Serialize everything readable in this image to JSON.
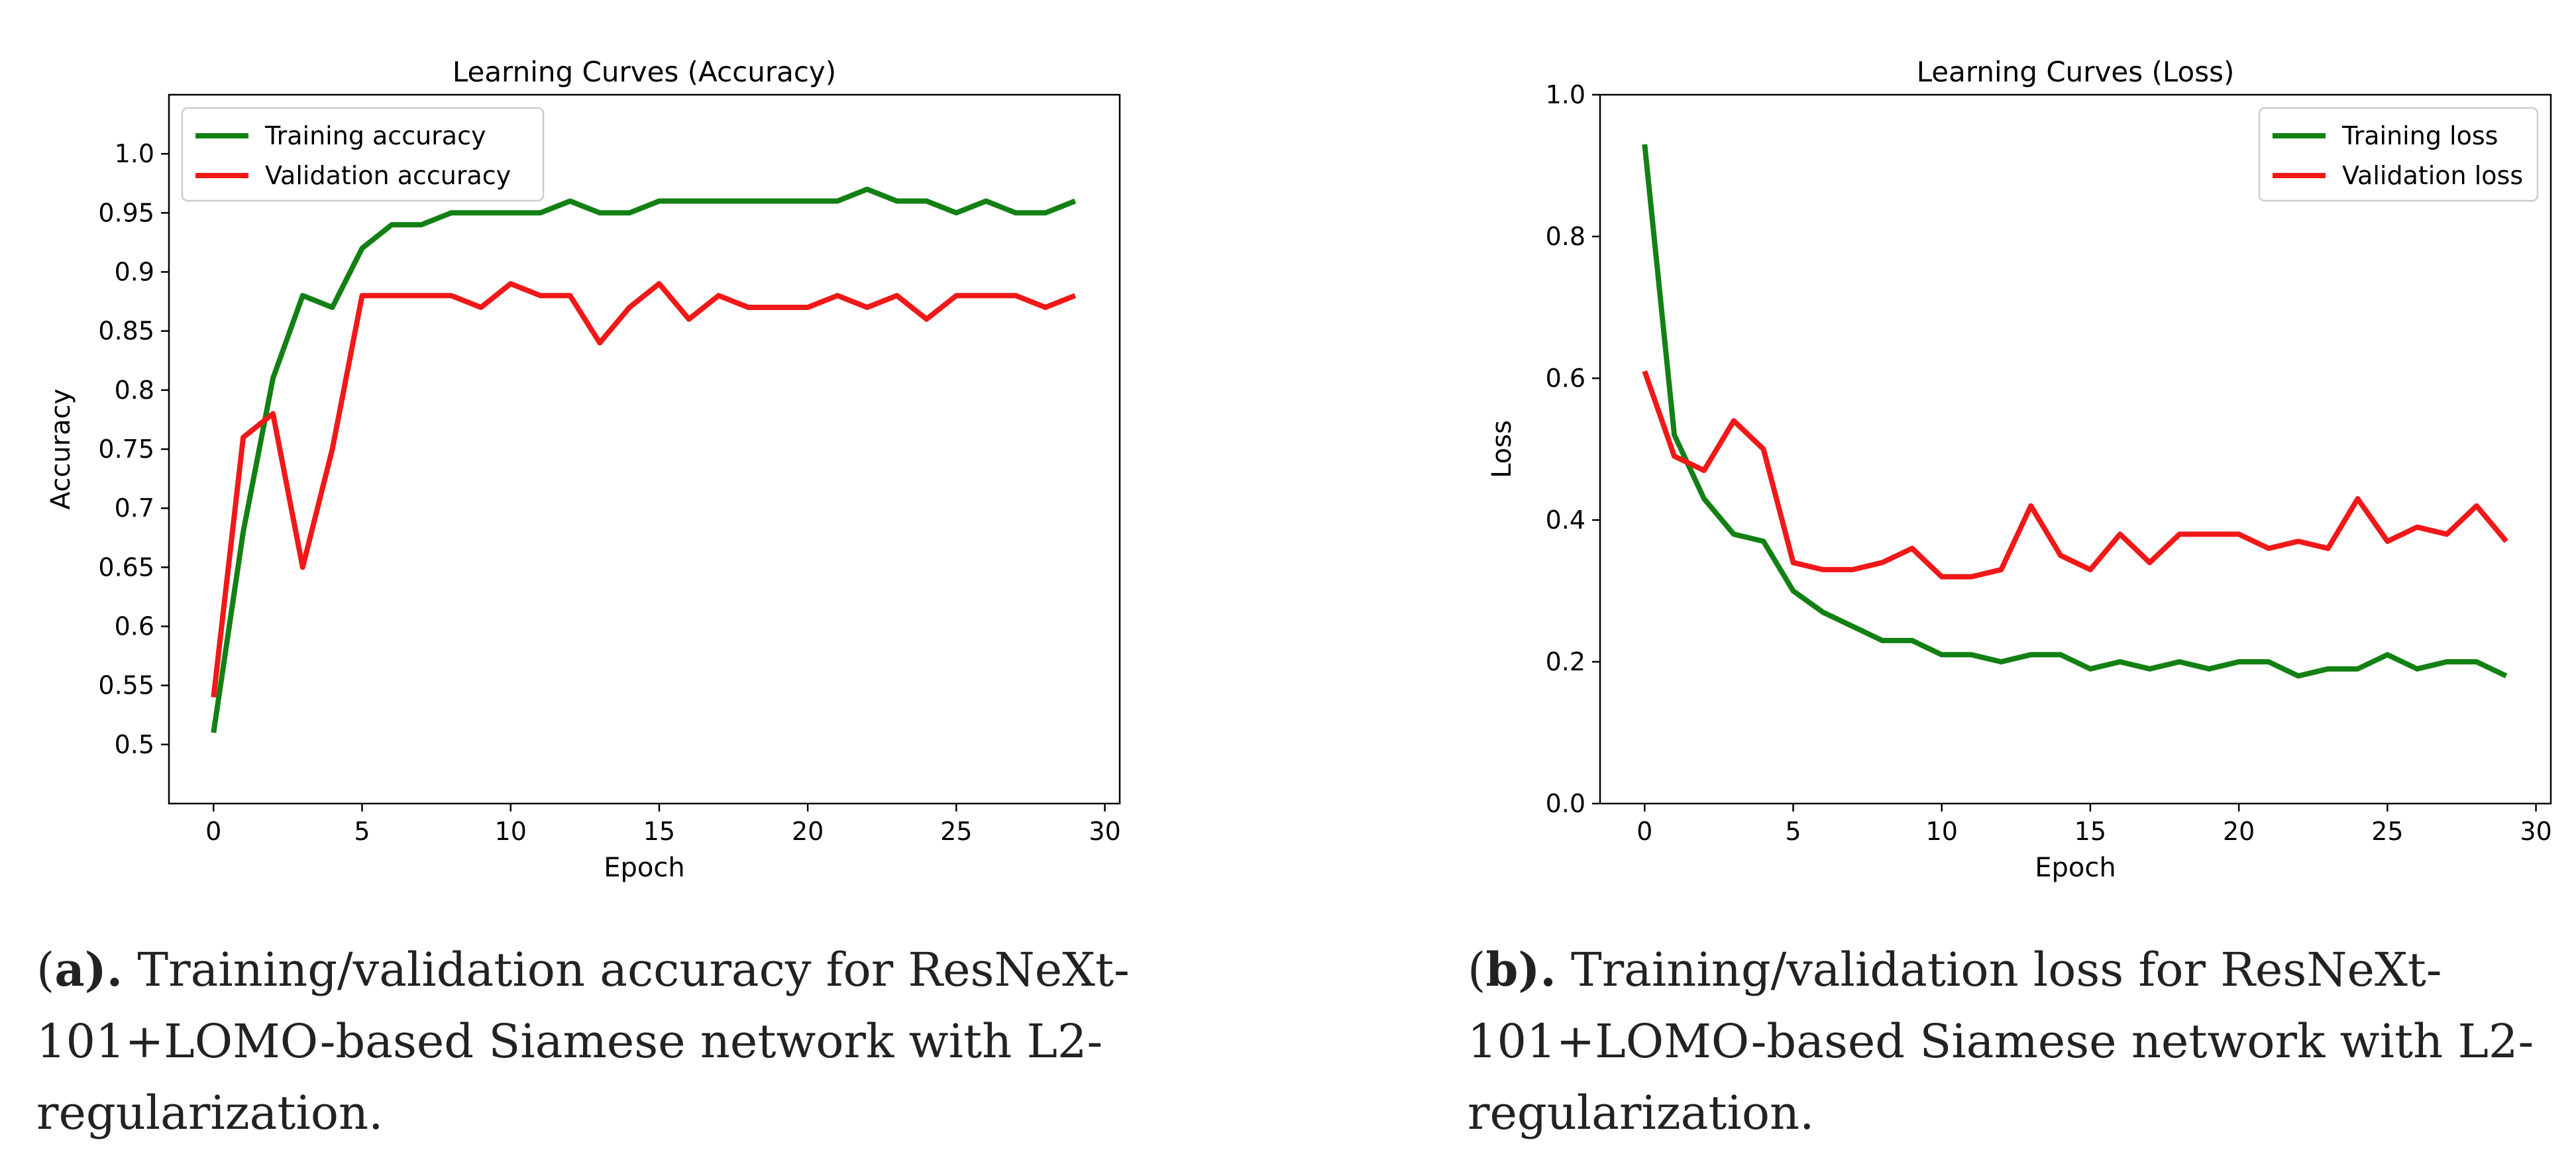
{
  "chart_data": [
    {
      "id": "a",
      "type": "line",
      "title": "Learning Curves (Accuracy)",
      "xlabel": "Epoch",
      "ylabel": "Accuracy",
      "xlim": [
        -1.5,
        30.5
      ],
      "ylim": [
        0.45,
        1.05
      ],
      "xticks": [
        0,
        5,
        10,
        15,
        20,
        25,
        30
      ],
      "yticks": [
        0.5,
        0.55,
        0.6,
        0.65,
        0.7,
        0.75,
        0.8,
        0.85,
        0.9,
        0.95,
        1.0
      ],
      "ytick_labels": [
        "0.5",
        "0.55",
        "0.6",
        "0.65",
        "0.7",
        "0.75",
        "0.8",
        "0.85",
        "0.9",
        "0.95",
        "1.0"
      ],
      "legend_position": "top-left",
      "x": [
        0,
        1,
        2,
        3,
        4,
        5,
        6,
        7,
        8,
        9,
        10,
        11,
        12,
        13,
        14,
        15,
        16,
        17,
        18,
        19,
        20,
        21,
        22,
        23,
        24,
        25,
        26,
        27,
        28,
        29
      ],
      "series": [
        {
          "name": "Training accuracy",
          "color": "#138013",
          "values": [
            0.51,
            0.68,
            0.81,
            0.88,
            0.87,
            0.92,
            0.94,
            0.94,
            0.95,
            0.95,
            0.95,
            0.95,
            0.96,
            0.95,
            0.95,
            0.96,
            0.96,
            0.96,
            0.96,
            0.96,
            0.96,
            0.96,
            0.97,
            0.96,
            0.96,
            0.95,
            0.96,
            0.95,
            0.95,
            0.96
          ]
        },
        {
          "name": "Validation accuracy",
          "color": "#f01818",
          "values": [
            0.54,
            0.76,
            0.78,
            0.65,
            0.75,
            0.88,
            0.88,
            0.88,
            0.88,
            0.87,
            0.89,
            0.88,
            0.88,
            0.84,
            0.87,
            0.89,
            0.86,
            0.88,
            0.87,
            0.87,
            0.87,
            0.88,
            0.87,
            0.88,
            0.86,
            0.88,
            0.88,
            0.88,
            0.87,
            0.88
          ]
        }
      ]
    },
    {
      "id": "b",
      "type": "line",
      "title": "Learning Curves (Loss)",
      "xlabel": "Epoch",
      "ylabel": "Loss",
      "xlim": [
        -1.5,
        30.5
      ],
      "ylim": [
        0.0,
        1.0
      ],
      "xticks": [
        0,
        5,
        10,
        15,
        20,
        25,
        30
      ],
      "yticks": [
        0.0,
        0.2,
        0.4,
        0.6,
        0.8,
        1.0
      ],
      "ytick_labels": [
        "0.0",
        "0.2",
        "0.4",
        "0.6",
        "0.8",
        "1.0"
      ],
      "legend_position": "top-right",
      "x": [
        0,
        1,
        2,
        3,
        4,
        5,
        6,
        7,
        8,
        9,
        10,
        11,
        12,
        13,
        14,
        15,
        16,
        17,
        18,
        19,
        20,
        21,
        22,
        23,
        24,
        25,
        26,
        27,
        28,
        29
      ],
      "series": [
        {
          "name": "Training loss",
          "color": "#138013",
          "values": [
            0.93,
            0.52,
            0.43,
            0.38,
            0.37,
            0.3,
            0.27,
            0.25,
            0.23,
            0.23,
            0.21,
            0.21,
            0.2,
            0.21,
            0.21,
            0.19,
            0.2,
            0.19,
            0.2,
            0.19,
            0.2,
            0.2,
            0.18,
            0.19,
            0.19,
            0.21,
            0.19,
            0.2,
            0.2,
            0.18
          ]
        },
        {
          "name": "Validation loss",
          "color": "#f01818",
          "values": [
            0.61,
            0.49,
            0.47,
            0.54,
            0.5,
            0.34,
            0.33,
            0.33,
            0.34,
            0.36,
            0.32,
            0.32,
            0.33,
            0.42,
            0.35,
            0.33,
            0.38,
            0.34,
            0.38,
            0.38,
            0.38,
            0.36,
            0.37,
            0.36,
            0.43,
            0.37,
            0.39,
            0.38,
            0.42,
            0.37
          ]
        }
      ]
    }
  ],
  "captions": {
    "a": {
      "label": "a",
      "open": "(",
      "close": ").",
      "text": " Training/validation accuracy for ResNeXt-101+LOMO-based Siamese network with L2-regularization."
    },
    "b": {
      "label": "b",
      "open": "(",
      "close": ").",
      "text": " Training/validation loss for ResNeXt-101+LOMO-based Siamese network with L2-regularization."
    }
  }
}
